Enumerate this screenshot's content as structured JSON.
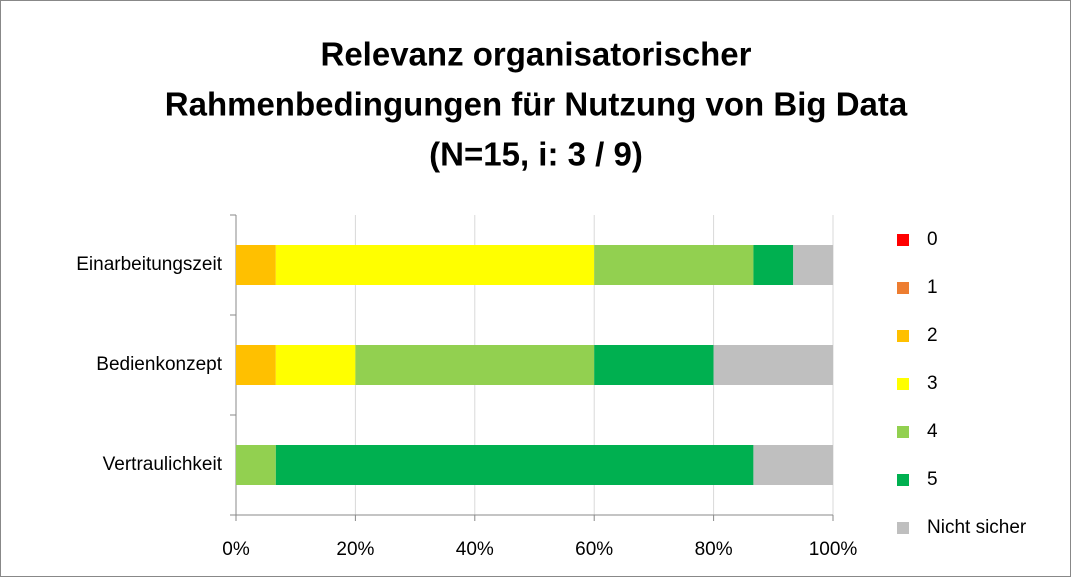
{
  "chart_data": {
    "type": "stacked_bar_horizontal",
    "title": [
      "Relevanz organisatorischer",
      "Rahmenbedingungen für Nutzung von Big Data",
      "(N=15, i: 3 / 9)"
    ],
    "categories": [
      "Einarbeitungszeit",
      "Bedienkonzept",
      "Vertraulichkeit"
    ],
    "series": [
      {
        "name": "0",
        "color": "#ff0000",
        "values": [
          0,
          0,
          0
        ]
      },
      {
        "name": "1",
        "color": "#ed7d31",
        "values": [
          0,
          0,
          0
        ]
      },
      {
        "name": "2",
        "color": "#ffc000",
        "values": [
          6.67,
          6.67,
          0
        ]
      },
      {
        "name": "3",
        "color": "#ffff00",
        "values": [
          53.33,
          13.33,
          0
        ]
      },
      {
        "name": "4",
        "color": "#92d050",
        "values": [
          26.67,
          40,
          6.67
        ]
      },
      {
        "name": "5",
        "color": "#00b050",
        "values": [
          6.67,
          20,
          80
        ]
      },
      {
        "name": "Nicht sicher",
        "color": "#bfbfbf",
        "values": [
          6.67,
          20,
          13.33
        ]
      }
    ],
    "xlim": [
      0,
      100
    ],
    "xticks": [
      {
        "value": 0,
        "label": "0%"
      },
      {
        "value": 20,
        "label": "20%"
      },
      {
        "value": 40,
        "label": "40%"
      },
      {
        "value": 60,
        "label": "60%"
      },
      {
        "value": 80,
        "label": "80%"
      },
      {
        "value": 100,
        "label": "100%"
      }
    ],
    "grid": true,
    "legend": "right"
  }
}
